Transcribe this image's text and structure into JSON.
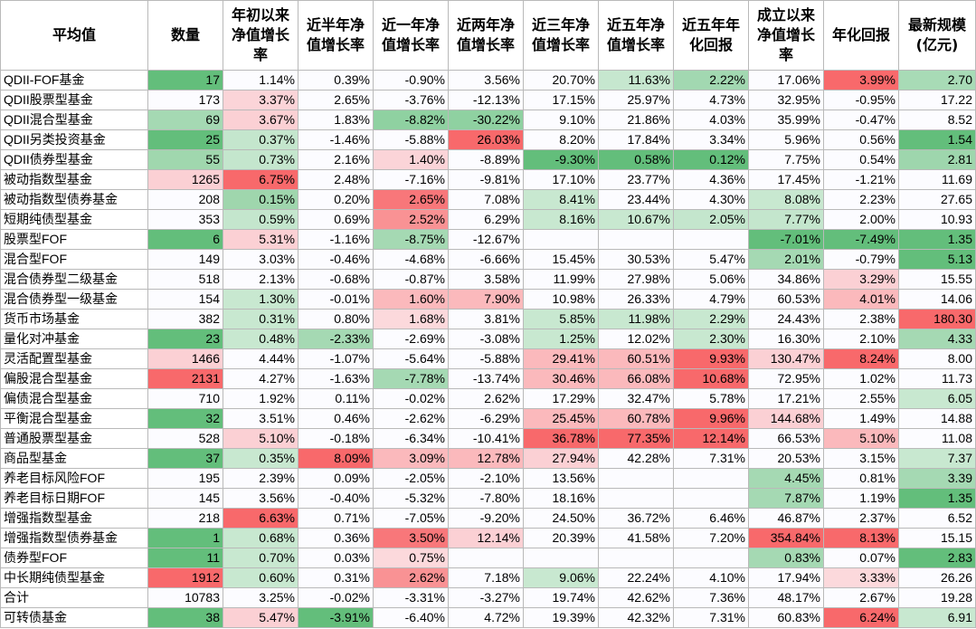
{
  "table": {
    "headers": [
      "平均值",
      "数量",
      "年初以来净值增长率",
      "近半年净值增长率",
      "近一年净值增长率",
      "近两年净值增长率",
      "近三年净值增长率",
      "近五年净值增长率",
      "近五年年化回报",
      "成立以来净值增长率",
      "年化回报",
      "最新规模(亿元)"
    ],
    "rows": [
      {
        "name": "QDII-FOF基金",
        "values": [
          "17",
          "1.14%",
          "0.39%",
          "-0.90%",
          "3.56%",
          "20.70%",
          "11.63%",
          "2.22%",
          "17.06%",
          "3.99%",
          "2.70"
        ]
      },
      {
        "name": "QDII股票型基金",
        "values": [
          "173",
          "3.37%",
          "2.65%",
          "-3.76%",
          "-12.13%",
          "17.15%",
          "25.97%",
          "4.73%",
          "32.95%",
          "-0.95%",
          "17.22"
        ]
      },
      {
        "name": "QDII混合型基金",
        "values": [
          "69",
          "3.67%",
          "1.83%",
          "-8.82%",
          "-30.22%",
          "9.10%",
          "21.86%",
          "4.03%",
          "35.99%",
          "-0.47%",
          "8.52"
        ]
      },
      {
        "name": "QDII另类投资基金",
        "values": [
          "25",
          "0.37%",
          "-1.46%",
          "-5.88%",
          "26.03%",
          "8.20%",
          "17.84%",
          "3.34%",
          "5.96%",
          "0.56%",
          "1.54"
        ]
      },
      {
        "name": "QDII债券型基金",
        "values": [
          "55",
          "0.73%",
          "2.16%",
          "1.40%",
          "-8.89%",
          "-9.30%",
          "0.58%",
          "0.12%",
          "7.75%",
          "0.54%",
          "2.81"
        ]
      },
      {
        "name": "被动指数型基金",
        "values": [
          "1265",
          "6.75%",
          "2.48%",
          "-7.16%",
          "-9.81%",
          "17.10%",
          "23.77%",
          "4.36%",
          "17.45%",
          "-1.21%",
          "11.69"
        ]
      },
      {
        "name": "被动指数型债券基金",
        "values": [
          "208",
          "0.15%",
          "0.20%",
          "2.65%",
          "7.08%",
          "8.41%",
          "23.44%",
          "4.30%",
          "8.08%",
          "2.23%",
          "27.65"
        ]
      },
      {
        "name": "短期纯债型基金",
        "values": [
          "353",
          "0.59%",
          "0.69%",
          "2.52%",
          "6.29%",
          "8.16%",
          "10.67%",
          "2.05%",
          "7.77%",
          "2.00%",
          "10.93"
        ]
      },
      {
        "name": "股票型FOF",
        "values": [
          "6",
          "5.31%",
          "-1.16%",
          "-8.75%",
          "-12.67%",
          "",
          "",
          "",
          "-7.01%",
          "-7.49%",
          "1.35"
        ]
      },
      {
        "name": "混合型FOF",
        "values": [
          "149",
          "3.03%",
          "-0.46%",
          "-4.68%",
          "-6.66%",
          "15.45%",
          "30.53%",
          "5.47%",
          "2.01%",
          "-0.79%",
          "5.13"
        ]
      },
      {
        "name": "混合债券型二级基金",
        "values": [
          "518",
          "2.13%",
          "-0.68%",
          "-0.87%",
          "3.58%",
          "11.99%",
          "27.98%",
          "5.06%",
          "34.86%",
          "3.29%",
          "15.55"
        ]
      },
      {
        "name": "混合债券型一级基金",
        "values": [
          "154",
          "1.30%",
          "-0.01%",
          "1.60%",
          "7.90%",
          "10.98%",
          "26.33%",
          "4.79%",
          "60.53%",
          "4.01%",
          "14.06"
        ]
      },
      {
        "name": "货币市场基金",
        "values": [
          "382",
          "0.31%",
          "0.80%",
          "1.68%",
          "3.81%",
          "5.85%",
          "11.98%",
          "2.29%",
          "24.43%",
          "2.38%",
          "180.30"
        ]
      },
      {
        "name": "量化对冲基金",
        "values": [
          "23",
          "0.48%",
          "-2.33%",
          "-2.69%",
          "-3.08%",
          "1.25%",
          "12.02%",
          "2.30%",
          "16.30%",
          "2.10%",
          "4.33"
        ]
      },
      {
        "name": "灵活配置型基金",
        "values": [
          "1466",
          "4.44%",
          "-1.07%",
          "-5.64%",
          "-5.88%",
          "29.41%",
          "60.51%",
          "9.93%",
          "130.47%",
          "8.24%",
          "8.00"
        ]
      },
      {
        "name": "偏股混合型基金",
        "values": [
          "2131",
          "4.27%",
          "-1.63%",
          "-7.78%",
          "-13.74%",
          "30.46%",
          "66.08%",
          "10.68%",
          "72.95%",
          "1.02%",
          "11.73"
        ]
      },
      {
        "name": "偏债混合型基金",
        "values": [
          "710",
          "1.92%",
          "0.11%",
          "-0.02%",
          "2.62%",
          "17.29%",
          "32.47%",
          "5.78%",
          "17.21%",
          "2.55%",
          "6.05"
        ]
      },
      {
        "name": "平衡混合型基金",
        "values": [
          "32",
          "3.51%",
          "0.46%",
          "-2.62%",
          "-6.29%",
          "25.45%",
          "60.78%",
          "9.96%",
          "144.68%",
          "1.49%",
          "14.88"
        ]
      },
      {
        "name": "普通股票型基金",
        "values": [
          "528",
          "5.10%",
          "-0.18%",
          "-6.34%",
          "-10.41%",
          "36.78%",
          "77.35%",
          "12.14%",
          "66.53%",
          "5.10%",
          "11.08"
        ]
      },
      {
        "name": "商品型基金",
        "values": [
          "37",
          "0.35%",
          "8.09%",
          "3.09%",
          "12.78%",
          "27.94%",
          "42.28%",
          "7.31%",
          "20.53%",
          "3.15%",
          "7.37"
        ]
      },
      {
        "name": "养老目标风险FOF",
        "values": [
          "195",
          "2.39%",
          "0.09%",
          "-2.05%",
          "-2.10%",
          "13.56%",
          "",
          "",
          "4.45%",
          "0.81%",
          "3.39"
        ]
      },
      {
        "name": "养老目标日期FOF",
        "values": [
          "145",
          "3.56%",
          "-0.40%",
          "-5.32%",
          "-7.80%",
          "18.16%",
          "",
          "",
          "7.87%",
          "1.19%",
          "1.35"
        ]
      },
      {
        "name": "增强指数型基金",
        "values": [
          "218",
          "6.63%",
          "0.71%",
          "-7.05%",
          "-9.20%",
          "24.50%",
          "36.72%",
          "6.46%",
          "46.87%",
          "2.37%",
          "6.52"
        ]
      },
      {
        "name": "增强指数型债券基金",
        "values": [
          "1",
          "0.68%",
          "0.36%",
          "3.50%",
          "12.14%",
          "20.39%",
          "41.58%",
          "7.20%",
          "354.84%",
          "8.13%",
          "15.15"
        ]
      },
      {
        "name": "债券型FOF",
        "values": [
          "11",
          "0.70%",
          "0.03%",
          "0.75%",
          "",
          "",
          "",
          "",
          "0.83%",
          "0.07%",
          "2.83"
        ]
      },
      {
        "name": "中长期纯债型基金",
        "values": [
          "1912",
          "0.60%",
          "0.31%",
          "2.62%",
          "7.18%",
          "9.06%",
          "22.24%",
          "4.10%",
          "17.94%",
          "3.33%",
          "26.26"
        ]
      },
      {
        "name": "合计",
        "values": [
          "10783",
          "3.25%",
          "-0.02%",
          "-3.31%",
          "-3.27%",
          "19.74%",
          "42.62%",
          "7.36%",
          "48.17%",
          "2.67%",
          "19.28"
        ]
      },
      {
        "name": "可转债基金",
        "values": [
          "38",
          "5.47%",
          "-3.91%",
          "-6.40%",
          "4.72%",
          "19.39%",
          "42.32%",
          "7.31%",
          "60.83%",
          "6.24%",
          "6.91"
        ]
      }
    ],
    "cell_colors": [
      [
        "#63be7b",
        "#fcfcff",
        "#fcfcff",
        "#fcfcff",
        "#fcfcff",
        "#fcfcff",
        "#c6e7cf",
        "#a2d8b1",
        "#fcfcff",
        "#f8696b",
        "#a8dbb6"
      ],
      [
        "#fcfcff",
        "#fbd4d8",
        "#fcfcff",
        "#fcfcff",
        "#fcfcff",
        "#fcfcff",
        "#fcfcff",
        "#fcfcff",
        "#fcfcff",
        "#fcfcff",
        "#fcfcff"
      ],
      [
        "#a5d9b3",
        "#fbd0d4",
        "#fcfcff",
        "#8fd1a1",
        "#8fd1a1",
        "#fcfcff",
        "#fcfcff",
        "#fcfcff",
        "#fcfcff",
        "#fcfcff",
        "#fcfcff"
      ],
      [
        "#63be7b",
        "#c4e6cd",
        "#fcfcff",
        "#fcfcff",
        "#f8696b",
        "#fcfcff",
        "#fcfcff",
        "#fcfcff",
        "#fcfcff",
        "#fcfcff",
        "#63be7b"
      ],
      [
        "#a0d7ae",
        "#c4e6cd",
        "#fcfcff",
        "#fbd4d8",
        "#fcfcff",
        "#63be7b",
        "#63be7b",
        "#63be7b",
        "#fcfcff",
        "#fcfcff",
        "#9ed6ad"
      ],
      [
        "#fbd0d4",
        "#f8696b",
        "#fcfcff",
        "#fcfcff",
        "#fcfcff",
        "#fcfcff",
        "#fcfcff",
        "#fcfcff",
        "#fcfcff",
        "#fcfcff",
        "#fcfcff"
      ],
      [
        "#fcfcff",
        "#9fd6ad",
        "#fcfcff",
        "#f8777a",
        "#fcfcff",
        "#c8e8d0",
        "#fcfcff",
        "#fcfcff",
        "#c8e8d0",
        "#fcfcff",
        "#fcfcff"
      ],
      [
        "#fcfcff",
        "#c4e6cd",
        "#fcfcff",
        "#f99294",
        "#fcfcff",
        "#c8e8d0",
        "#c8e8d0",
        "#c4e6cd",
        "#c4e6cd",
        "#fcfcff",
        "#fcfcff"
      ],
      [
        "#63be7b",
        "#fbd0d4",
        "#fcfcff",
        "#a5d9b3",
        "#fcfcff",
        "#fcfcff",
        "#fcfcff",
        "#fcfcff",
        "#63be7b",
        "#63be7b",
        "#63be7b"
      ],
      [
        "#fcfcff",
        "#fcfcff",
        "#fcfcff",
        "#fcfcff",
        "#fcfcff",
        "#fcfcff",
        "#fcfcff",
        "#fcfcff",
        "#a5d9b3",
        "#fcfcff",
        "#63be7b"
      ],
      [
        "#fcfcff",
        "#fcfcff",
        "#fcfcff",
        "#fcfcff",
        "#fcfcff",
        "#fcfcff",
        "#fcfcff",
        "#fcfcff",
        "#fcfcff",
        "#fbd0d4",
        "#fcfcff"
      ],
      [
        "#fcfcff",
        "#c8e8d0",
        "#fcfcff",
        "#fbb9bc",
        "#fbb9bc",
        "#fcfcff",
        "#fcfcff",
        "#fcfcff",
        "#fcfcff",
        "#fbb9bc",
        "#fcfcff"
      ],
      [
        "#fcfcff",
        "#c8e8d0",
        "#fcfcff",
        "#fcd9dc",
        "#fcfcff",
        "#c8e8d0",
        "#c8e8d0",
        "#c8e8d0",
        "#fcfcff",
        "#fcfcff",
        "#f8696b"
      ],
      [
        "#63be7b",
        "#c8e8d0",
        "#a5d9b3",
        "#fcfcff",
        "#fcfcff",
        "#c8e8d0",
        "#fcfcff",
        "#c8e8d0",
        "#fcfcff",
        "#fcfcff",
        "#a5d9b3"
      ],
      [
        "#fbd0d4",
        "#fcfcff",
        "#fcfcff",
        "#fcfcff",
        "#fcfcff",
        "#fbb9bc",
        "#fbb9bc",
        "#f8696b",
        "#fbd0d4",
        "#f8696b",
        "#fcfcff"
      ],
      [
        "#f8696b",
        "#fcfcff",
        "#fcfcff",
        "#a5d9b3",
        "#fcfcff",
        "#fbb9bc",
        "#fbb9bc",
        "#f8696b",
        "#fcfcff",
        "#fcfcff",
        "#fcfcff"
      ],
      [
        "#fcfcff",
        "#fcfcff",
        "#fcfcff",
        "#fcfcff",
        "#fcfcff",
        "#fcfcff",
        "#fcfcff",
        "#fcfcff",
        "#fcfcff",
        "#fcfcff",
        "#c8e8d0"
      ],
      [
        "#63be7b",
        "#fcfcff",
        "#fcfcff",
        "#fcfcff",
        "#fcfcff",
        "#fbb9bc",
        "#fbb9bc",
        "#f8696b",
        "#fbd0d4",
        "#fcfcff",
        "#fcfcff"
      ],
      [
        "#fcfcff",
        "#fbd0d4",
        "#fcfcff",
        "#fcfcff",
        "#fcfcff",
        "#f8696b",
        "#f8696b",
        "#f8696b",
        "#fcfcff",
        "#fbb9bc",
        "#fcfcff"
      ],
      [
        "#63be7b",
        "#c8e8d0",
        "#f8696b",
        "#fbb9bc",
        "#fbb9bc",
        "#fbd0d4",
        "#fcfcff",
        "#fcfcff",
        "#fcfcff",
        "#fcfcff",
        "#c8e8d0"
      ],
      [
        "#fcfcff",
        "#fcfcff",
        "#fcfcff",
        "#fcfcff",
        "#fcfcff",
        "#fcfcff",
        "#fcfcff",
        "#fcfcff",
        "#a5d9b3",
        "#fcfcff",
        "#a5d9b3"
      ],
      [
        "#fcfcff",
        "#fcfcff",
        "#fcfcff",
        "#fcfcff",
        "#fcfcff",
        "#fcfcff",
        "#fcfcff",
        "#fcfcff",
        "#a5d9b3",
        "#fcfcff",
        "#63be7b"
      ],
      [
        "#fcfcff",
        "#f8696b",
        "#fcfcff",
        "#fcfcff",
        "#fcfcff",
        "#fcfcff",
        "#fcfcff",
        "#fcfcff",
        "#fcfcff",
        "#fcfcff",
        "#fcfcff"
      ],
      [
        "#63be7b",
        "#c8e8d0",
        "#fcfcff",
        "#f8777a",
        "#fbd0d4",
        "#fcfcff",
        "#fcfcff",
        "#fcfcff",
        "#f8696b",
        "#f8696b",
        "#fcfcff"
      ],
      [
        "#63be7b",
        "#c8e8d0",
        "#fcfcff",
        "#fcd9dc",
        "#fcfcff",
        "#fcfcff",
        "#fcfcff",
        "#fcfcff",
        "#a5d9b3",
        "#fcfcff",
        "#63be7b"
      ],
      [
        "#f8696b",
        "#c8e8d0",
        "#fcfcff",
        "#f99294",
        "#fcfcff",
        "#c8e8d0",
        "#fcfcff",
        "#fcfcff",
        "#fcfcff",
        "#fcd9dc",
        "#fcfcff"
      ],
      [
        "#fcfcff",
        "#fcfcff",
        "#fcfcff",
        "#fcfcff",
        "#fcfcff",
        "#fcfcff",
        "#fcfcff",
        "#fcfcff",
        "#fcfcff",
        "#fcfcff",
        "#fcfcff"
      ],
      [
        "#63be7b",
        "#fbd0d4",
        "#63be7b",
        "#fcfcff",
        "#fcfcff",
        "#fcfcff",
        "#fcfcff",
        "#fcfcff",
        "#fcfcff",
        "#f8696b",
        "#c8e8d0"
      ]
    ]
  }
}
